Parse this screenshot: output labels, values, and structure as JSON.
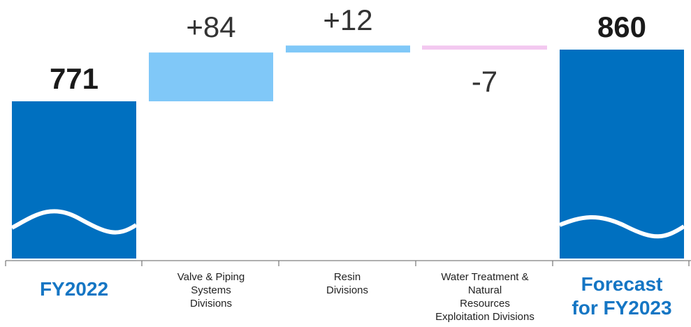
{
  "chart_data": {
    "type": "bar",
    "subtype": "waterfall",
    "categories": [
      "FY2022",
      "Valve & Piping Systems Divisions",
      "Resin Divisions",
      "Water Treatment & Natural Resources Exploitation Divisions",
      "Forecast for FY2023"
    ],
    "category_lines": [
      [
        "FY2022"
      ],
      [
        "Valve & Piping",
        "Systems",
        "Divisions"
      ],
      [
        "Resin",
        "Divisions"
      ],
      [
        "Water Treatment &",
        "Natural",
        "Resources",
        "Exploitation Divisions"
      ],
      [
        "Forecast",
        "for FY2023"
      ]
    ],
    "values": [
      771,
      84,
      12,
      -7,
      860
    ],
    "kinds": [
      "total",
      "increase",
      "increase",
      "decrease",
      "total"
    ],
    "labels": [
      "771",
      "+84",
      "+12",
      "-7",
      "860"
    ],
    "title": "",
    "xlabel": "",
    "ylabel": "",
    "ylim": [
      0,
      900
    ],
    "grid": false,
    "legend": "none",
    "colors": {
      "total": "#0070c0",
      "increase": "#80c8f8",
      "decrease": "#f3c8f0",
      "wave": "#ffffff",
      "axis": "#7f7f7f",
      "category_total_text": "#1576c4"
    }
  }
}
